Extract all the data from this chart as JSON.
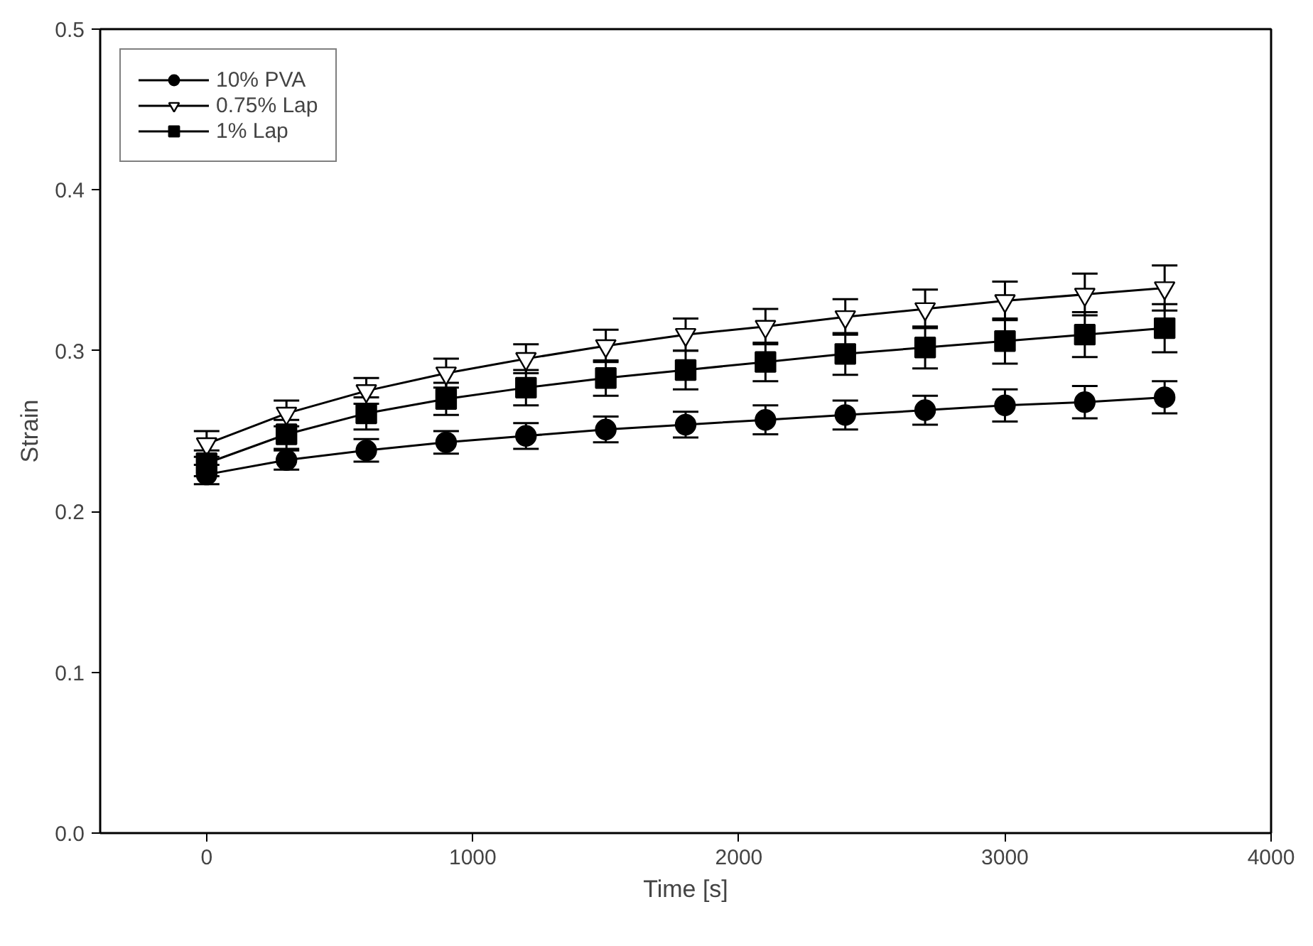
{
  "chart_data": {
    "type": "line",
    "xlabel": "Time [s]",
    "ylabel": "Strain",
    "x": [
      0,
      300,
      600,
      900,
      1200,
      1500,
      1800,
      2100,
      2400,
      2700,
      3000,
      3300,
      3600
    ],
    "series": [
      {
        "name": "10% PVA",
        "color": "#000000",
        "marker": "circle",
        "values": [
          0.223,
          0.232,
          0.238,
          0.243,
          0.247,
          0.251,
          0.254,
          0.257,
          0.26,
          0.263,
          0.266,
          0.268,
          0.271
        ],
        "errors": [
          0.006,
          0.006,
          0.007,
          0.007,
          0.008,
          0.008,
          0.008,
          0.009,
          0.009,
          0.009,
          0.01,
          0.01,
          0.01
        ]
      },
      {
        "name": "0.75% Lap",
        "color": "#000000",
        "marker": "triangle",
        "values": [
          0.242,
          0.261,
          0.275,
          0.286,
          0.295,
          0.303,
          0.31,
          0.315,
          0.321,
          0.326,
          0.331,
          0.335,
          0.339
        ],
        "errors": [
          0.008,
          0.008,
          0.008,
          0.009,
          0.009,
          0.01,
          0.01,
          0.011,
          0.011,
          0.012,
          0.012,
          0.013,
          0.014
        ]
      },
      {
        "name": "1% Lap",
        "color": "#000000",
        "marker": "square",
        "values": [
          0.23,
          0.248,
          0.261,
          0.27,
          0.277,
          0.283,
          0.288,
          0.293,
          0.298,
          0.302,
          0.306,
          0.31,
          0.314
        ],
        "errors": [
          0.008,
          0.009,
          0.01,
          0.01,
          0.011,
          0.011,
          0.012,
          0.012,
          0.013,
          0.013,
          0.014,
          0.014,
          0.015
        ]
      }
    ],
    "xlim": [
      -400,
      4000
    ],
    "xticks": [
      0,
      1000,
      2000,
      3000,
      4000
    ],
    "ylim": [
      0,
      0.5
    ],
    "yticks": [
      {
        "value": 0,
        "label": "0.0"
      },
      0.1,
      0.2,
      0.3,
      0.4,
      0.5
    ],
    "grid": false,
    "legend": "top left",
    "line_style": "solid"
  }
}
